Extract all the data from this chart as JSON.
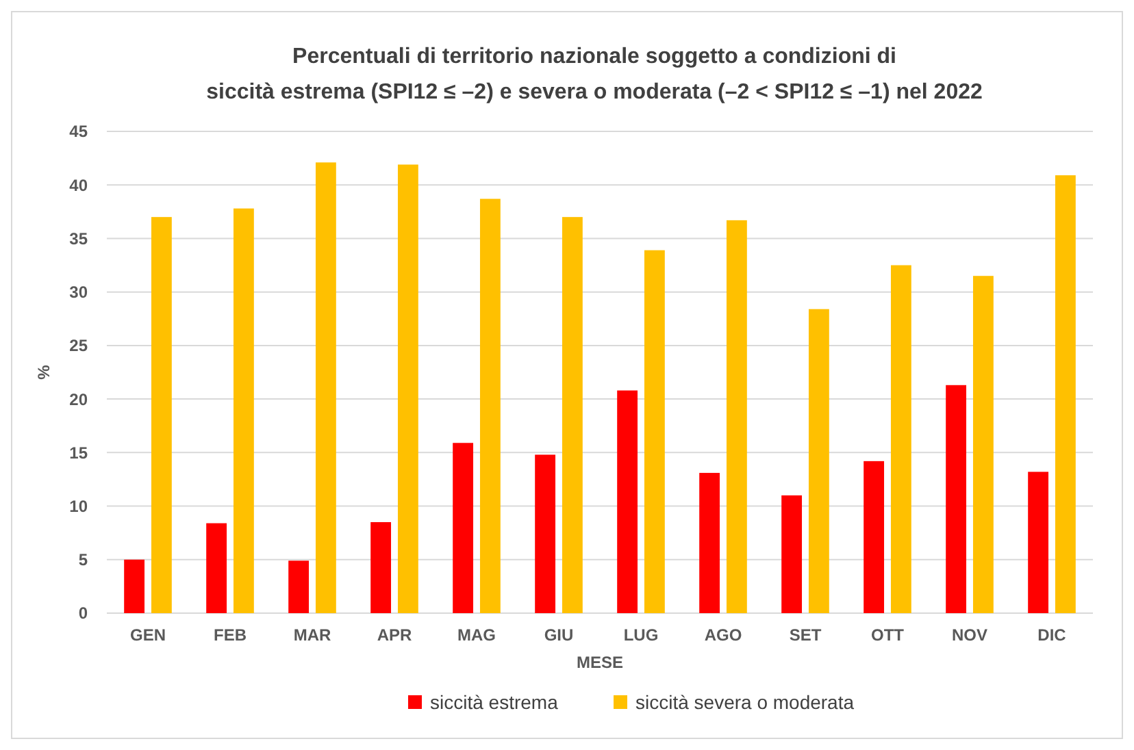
{
  "chart_data": {
    "type": "bar",
    "title": "Percentuali di territorio nazionale  soggetto a condizioni  di",
    "subtitle": "siccità estrema (SPI12 ≤ –2) e severa o moderata (–2 < SPI12 ≤ –1) nel 2022",
    "xlabel": "MESE",
    "ylabel": "%",
    "categories": [
      "GEN",
      "FEB",
      "MAR",
      "APR",
      "MAG",
      "GIU",
      "LUG",
      "AGO",
      "SET",
      "OTT",
      "NOV",
      "DIC"
    ],
    "series": [
      {
        "name": "siccità estrema",
        "color": "#ff0000",
        "values": [
          5.0,
          8.4,
          4.9,
          8.5,
          15.9,
          14.8,
          20.8,
          13.1,
          11.0,
          14.2,
          21.3,
          13.2
        ]
      },
      {
        "name": "siccità severa o moderata",
        "color": "#ffc000",
        "values": [
          37.0,
          37.8,
          42.1,
          41.9,
          38.7,
          37.0,
          33.9,
          36.7,
          28.4,
          32.5,
          31.5,
          40.9
        ]
      }
    ],
    "ylim": [
      0,
      45
    ],
    "yticks": [
      0,
      5,
      10,
      15,
      20,
      25,
      30,
      35,
      40,
      45
    ],
    "grid": "y",
    "legend": "bottom"
  }
}
